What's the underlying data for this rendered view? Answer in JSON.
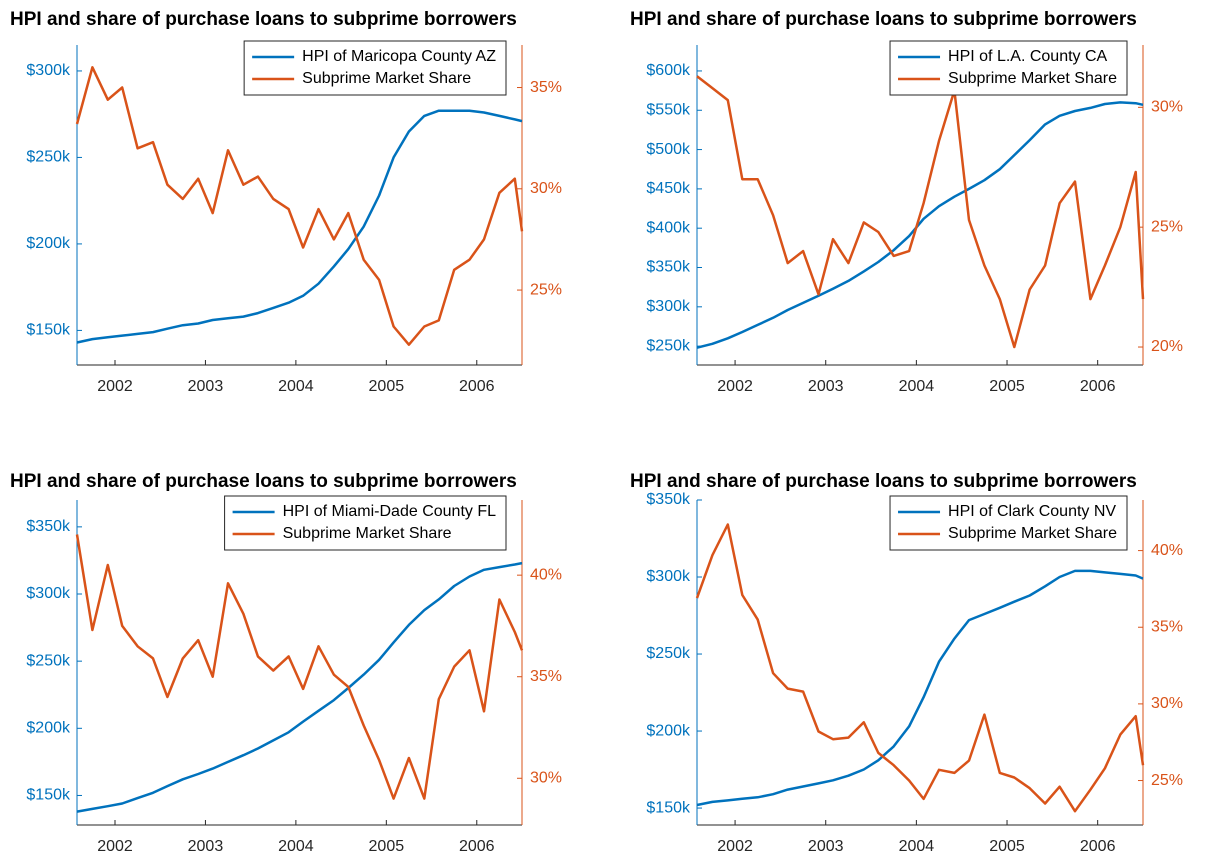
{
  "chart_data": [
    {
      "type": "line",
      "title": "HPI and share of purchase loans to subprime borrowers",
      "x": [
        2001.58,
        2001.75,
        2001.92,
        2002.08,
        2002.25,
        2002.42,
        2002.58,
        2002.75,
        2002.92,
        2003.08,
        2003.25,
        2003.42,
        2003.58,
        2003.75,
        2003.92,
        2004.08,
        2004.25,
        2004.42,
        2004.58,
        2004.75,
        2004.92,
        2005.08,
        2005.25,
        2005.42,
        2005.58,
        2005.75,
        2005.92,
        2006.08,
        2006.25,
        2006.42,
        2006.5
      ],
      "xlim": [
        2001.58,
        2006.5
      ],
      "xticks": [
        2002,
        2003,
        2004,
        2005,
        2006
      ],
      "ylim": [
        130,
        315
      ],
      "yticks": [
        {
          "value": 150,
          "label": "$150k"
        },
        {
          "value": 200,
          "label": "$200k"
        },
        {
          "value": 250,
          "label": "$250k"
        },
        {
          "value": 300,
          "label": "$300k"
        }
      ],
      "y2lim": [
        21.3,
        37.1
      ],
      "y2ticks": [
        {
          "value": 25,
          "label": "25%"
        },
        {
          "value": 30,
          "label": "30%"
        },
        {
          "value": 35,
          "label": "35%"
        }
      ],
      "legend": "upper right",
      "series": [
        {
          "name": "HPI of Maricopa County AZ",
          "color": "#0072BD",
          "values": [
            143,
            145,
            146,
            147,
            148,
            149,
            151,
            153,
            154,
            156,
            157,
            158,
            160,
            163,
            166,
            170,
            177,
            187,
            197,
            210,
            228,
            250,
            265,
            274,
            277,
            277,
            277,
            276,
            274,
            272,
            271
          ]
        },
        {
          "name": "Subprime Market Share",
          "color": "#D95319",
          "axis": "y2",
          "values": [
            33.2,
            36.0,
            34.4,
            35.0,
            32.0,
            32.3,
            30.2,
            29.5,
            30.5,
            28.8,
            31.9,
            30.2,
            30.6,
            29.5,
            29.0,
            27.1,
            29.0,
            27.5,
            28.8,
            26.5,
            25.5,
            23.2,
            22.3,
            23.2,
            23.5,
            26.0,
            26.5,
            27.5,
            29.8,
            30.5,
            27.9
          ]
        }
      ]
    },
    {
      "type": "line",
      "title": "HPI and share of purchase loans to subprime borrowers",
      "x": [
        2001.58,
        2001.75,
        2001.92,
        2002.08,
        2002.25,
        2002.42,
        2002.58,
        2002.75,
        2002.92,
        2003.08,
        2003.25,
        2003.42,
        2003.58,
        2003.75,
        2003.92,
        2004.08,
        2004.25,
        2004.42,
        2004.58,
        2004.75,
        2004.92,
        2005.08,
        2005.25,
        2005.42,
        2005.58,
        2005.75,
        2005.92,
        2006.08,
        2006.25,
        2006.42,
        2006.5
      ],
      "xlim": [
        2001.58,
        2006.5
      ],
      "xticks": [
        2002,
        2003,
        2004,
        2005,
        2006
      ],
      "ylim": [
        226,
        633
      ],
      "yticks": [
        {
          "value": 250,
          "label": "$250k"
        },
        {
          "value": 300,
          "label": "$300k"
        },
        {
          "value": 350,
          "label": "$350k"
        },
        {
          "value": 400,
          "label": "$400k"
        },
        {
          "value": 450,
          "label": "$450k"
        },
        {
          "value": 500,
          "label": "$500k"
        },
        {
          "value": 550,
          "label": "$550k"
        },
        {
          "value": 600,
          "label": "$600k"
        }
      ],
      "y2lim": [
        19.25,
        32.6
      ],
      "y2ticks": [
        {
          "value": 20,
          "label": "20%"
        },
        {
          "value": 25,
          "label": "25%"
        },
        {
          "value": 30,
          "label": "30%"
        }
      ],
      "legend": "upper right",
      "series": [
        {
          "name": "HPI of L.A. County CA",
          "color": "#0072BD",
          "values": [
            248,
            253,
            260,
            268,
            277,
            286,
            296,
            305,
            314,
            323,
            333,
            345,
            357,
            372,
            390,
            412,
            428,
            440,
            450,
            461,
            475,
            493,
            512,
            532,
            543,
            549,
            553,
            558,
            560,
            559,
            557
          ]
        },
        {
          "name": "Subprime Market Share",
          "color": "#D95319",
          "axis": "y2",
          "values": [
            31.3,
            30.8,
            30.3,
            27.0,
            27.0,
            25.5,
            23.5,
            24.0,
            22.2,
            24.5,
            23.5,
            25.2,
            24.8,
            23.8,
            24.0,
            26.0,
            28.6,
            30.7,
            25.3,
            23.4,
            22.0,
            20.0,
            22.4,
            23.4,
            26.0,
            26.9,
            22.0,
            23.4,
            25.0,
            27.3,
            22.0
          ]
        }
      ]
    },
    {
      "type": "line",
      "title": "HPI and share of purchase loans to subprime borrowers",
      "x": [
        2001.58,
        2001.75,
        2001.92,
        2002.08,
        2002.25,
        2002.42,
        2002.58,
        2002.75,
        2002.92,
        2003.08,
        2003.25,
        2003.42,
        2003.58,
        2003.75,
        2003.92,
        2004.08,
        2004.25,
        2004.42,
        2004.58,
        2004.75,
        2004.92,
        2005.08,
        2005.25,
        2005.42,
        2005.58,
        2005.75,
        2005.92,
        2006.08,
        2006.25,
        2006.42,
        2006.5
      ],
      "xlim": [
        2001.58,
        2006.5
      ],
      "xticks": [
        2002,
        2003,
        2004,
        2005,
        2006
      ],
      "ylim": [
        128,
        370
      ],
      "yticks": [
        {
          "value": 150,
          "label": "$150k"
        },
        {
          "value": 200,
          "label": "$200k"
        },
        {
          "value": 250,
          "label": "$250k"
        },
        {
          "value": 300,
          "label": "$300k"
        },
        {
          "value": 350,
          "label": "$350k"
        }
      ],
      "y2lim": [
        27.7,
        43.7
      ],
      "y2ticks": [
        {
          "value": 30,
          "label": "30%"
        },
        {
          "value": 35,
          "label": "35%"
        },
        {
          "value": 40,
          "label": "40%"
        }
      ],
      "legend": "upper right",
      "series": [
        {
          "name": "HPI of Miami-Dade County FL",
          "color": "#0072BD",
          "values": [
            138,
            140,
            142,
            144,
            148,
            152,
            157,
            162,
            166,
            170,
            175,
            180,
            185,
            191,
            197,
            205,
            213,
            221,
            230,
            240,
            251,
            264,
            277,
            288,
            296,
            306,
            313,
            318,
            320,
            322,
            323
          ]
        },
        {
          "name": "Subprime Market Share",
          "color": "#D95319",
          "axis": "y2",
          "values": [
            42.0,
            37.3,
            40.5,
            37.5,
            36.5,
            35.9,
            34.0,
            35.9,
            36.8,
            35.0,
            39.6,
            38.1,
            36.0,
            35.3,
            36.0,
            34.4,
            36.5,
            35.1,
            34.5,
            32.6,
            30.9,
            29.0,
            31.0,
            29.0,
            33.9,
            35.5,
            36.3,
            33.3,
            38.8,
            37.2,
            36.3
          ]
        }
      ]
    },
    {
      "type": "line",
      "title": "HPI and share of purchase loans to subprime borrowers",
      "x": [
        2001.58,
        2001.75,
        2001.92,
        2002.08,
        2002.25,
        2002.42,
        2002.58,
        2002.75,
        2002.92,
        2003.08,
        2003.25,
        2003.42,
        2003.58,
        2003.75,
        2003.92,
        2004.08,
        2004.25,
        2004.42,
        2004.58,
        2004.75,
        2004.92,
        2005.08,
        2005.25,
        2005.42,
        2005.58,
        2005.75,
        2005.92,
        2006.08,
        2006.25,
        2006.42,
        2006.5
      ],
      "xlim": [
        2001.58,
        2006.5
      ],
      "xticks": [
        2002,
        2003,
        2004,
        2005,
        2006
      ],
      "ylim": [
        139,
        350
      ],
      "yticks": [
        {
          "value": 150,
          "label": "$150k"
        },
        {
          "value": 200,
          "label": "$200k"
        },
        {
          "value": 250,
          "label": "$250k"
        },
        {
          "value": 300,
          "label": "$300k"
        },
        {
          "value": 350,
          "label": "$350k"
        }
      ],
      "y2lim": [
        22.1,
        43.3
      ],
      "y2ticks": [
        {
          "value": 25,
          "label": "25%"
        },
        {
          "value": 30,
          "label": "30%"
        },
        {
          "value": 35,
          "label": "35%"
        },
        {
          "value": 40,
          "label": "40%"
        }
      ],
      "legend": "upper right",
      "series": [
        {
          "name": "HPI of Clark County NV",
          "color": "#0072BD",
          "values": [
            152,
            154,
            155,
            156,
            157,
            159,
            162,
            164,
            166,
            168,
            171,
            175,
            181,
            190,
            203,
            222,
            245,
            260,
            272,
            276,
            280,
            284,
            288,
            294,
            300,
            304,
            304,
            303,
            302,
            301,
            299
          ]
        },
        {
          "name": "Subprime Market Share",
          "color": "#D95319",
          "axis": "y2",
          "values": [
            36.9,
            39.7,
            41.7,
            37.1,
            35.5,
            32.0,
            31.0,
            30.8,
            28.2,
            27.7,
            27.8,
            28.8,
            26.8,
            26.0,
            25.0,
            23.8,
            25.7,
            25.5,
            26.3,
            29.3,
            25.5,
            25.2,
            24.5,
            23.5,
            24.6,
            23.0,
            24.4,
            25.8,
            28.0,
            29.2,
            26.0
          ]
        }
      ]
    }
  ]
}
